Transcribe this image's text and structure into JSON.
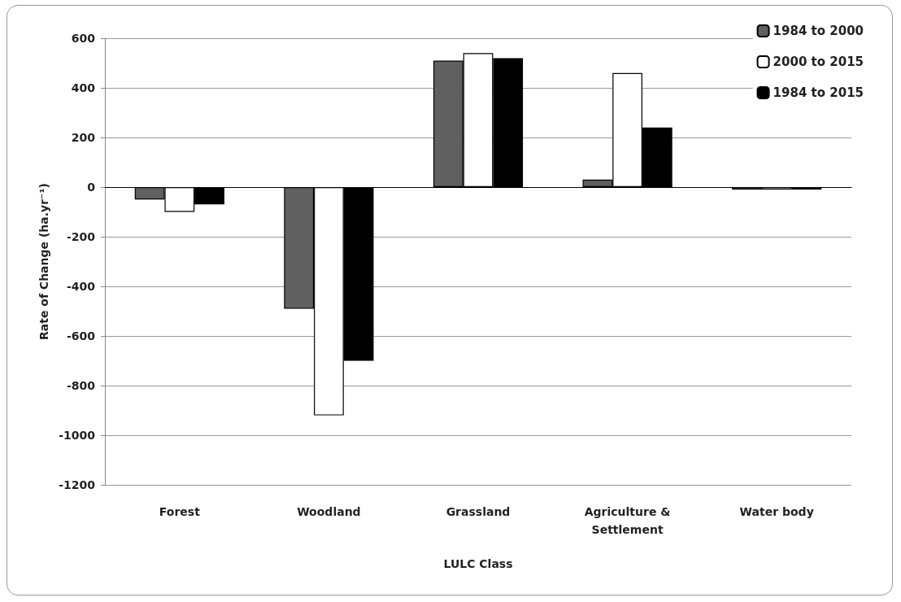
{
  "chart_data": {
    "type": "bar",
    "xlabel": "LULC Class",
    "ylabel": "Rate of Change (ha.yr⁻¹)",
    "categories": [
      "Forest",
      "Woodland",
      "Grassland",
      "Agriculture & Settlement",
      "Water body"
    ],
    "series": [
      {
        "name": "1984 to 2000",
        "color": "#606060",
        "values": [
          -50,
          -490,
          510,
          30,
          -10
        ]
      },
      {
        "name": "2000 to 2015",
        "color": "#ffffff",
        "values": [
          -100,
          -920,
          540,
          460,
          -10
        ]
      },
      {
        "name": "1984 to 2015",
        "color": "#000000",
        "values": [
          -70,
          -700,
          520,
          240,
          -10
        ]
      }
    ],
    "ylim": [
      -1200,
      600
    ],
    "yticks": [
      -1200,
      -1000,
      -800,
      -600,
      -400,
      -200,
      0,
      200,
      400,
      600
    ],
    "grid": "y",
    "legend": "top right"
  }
}
